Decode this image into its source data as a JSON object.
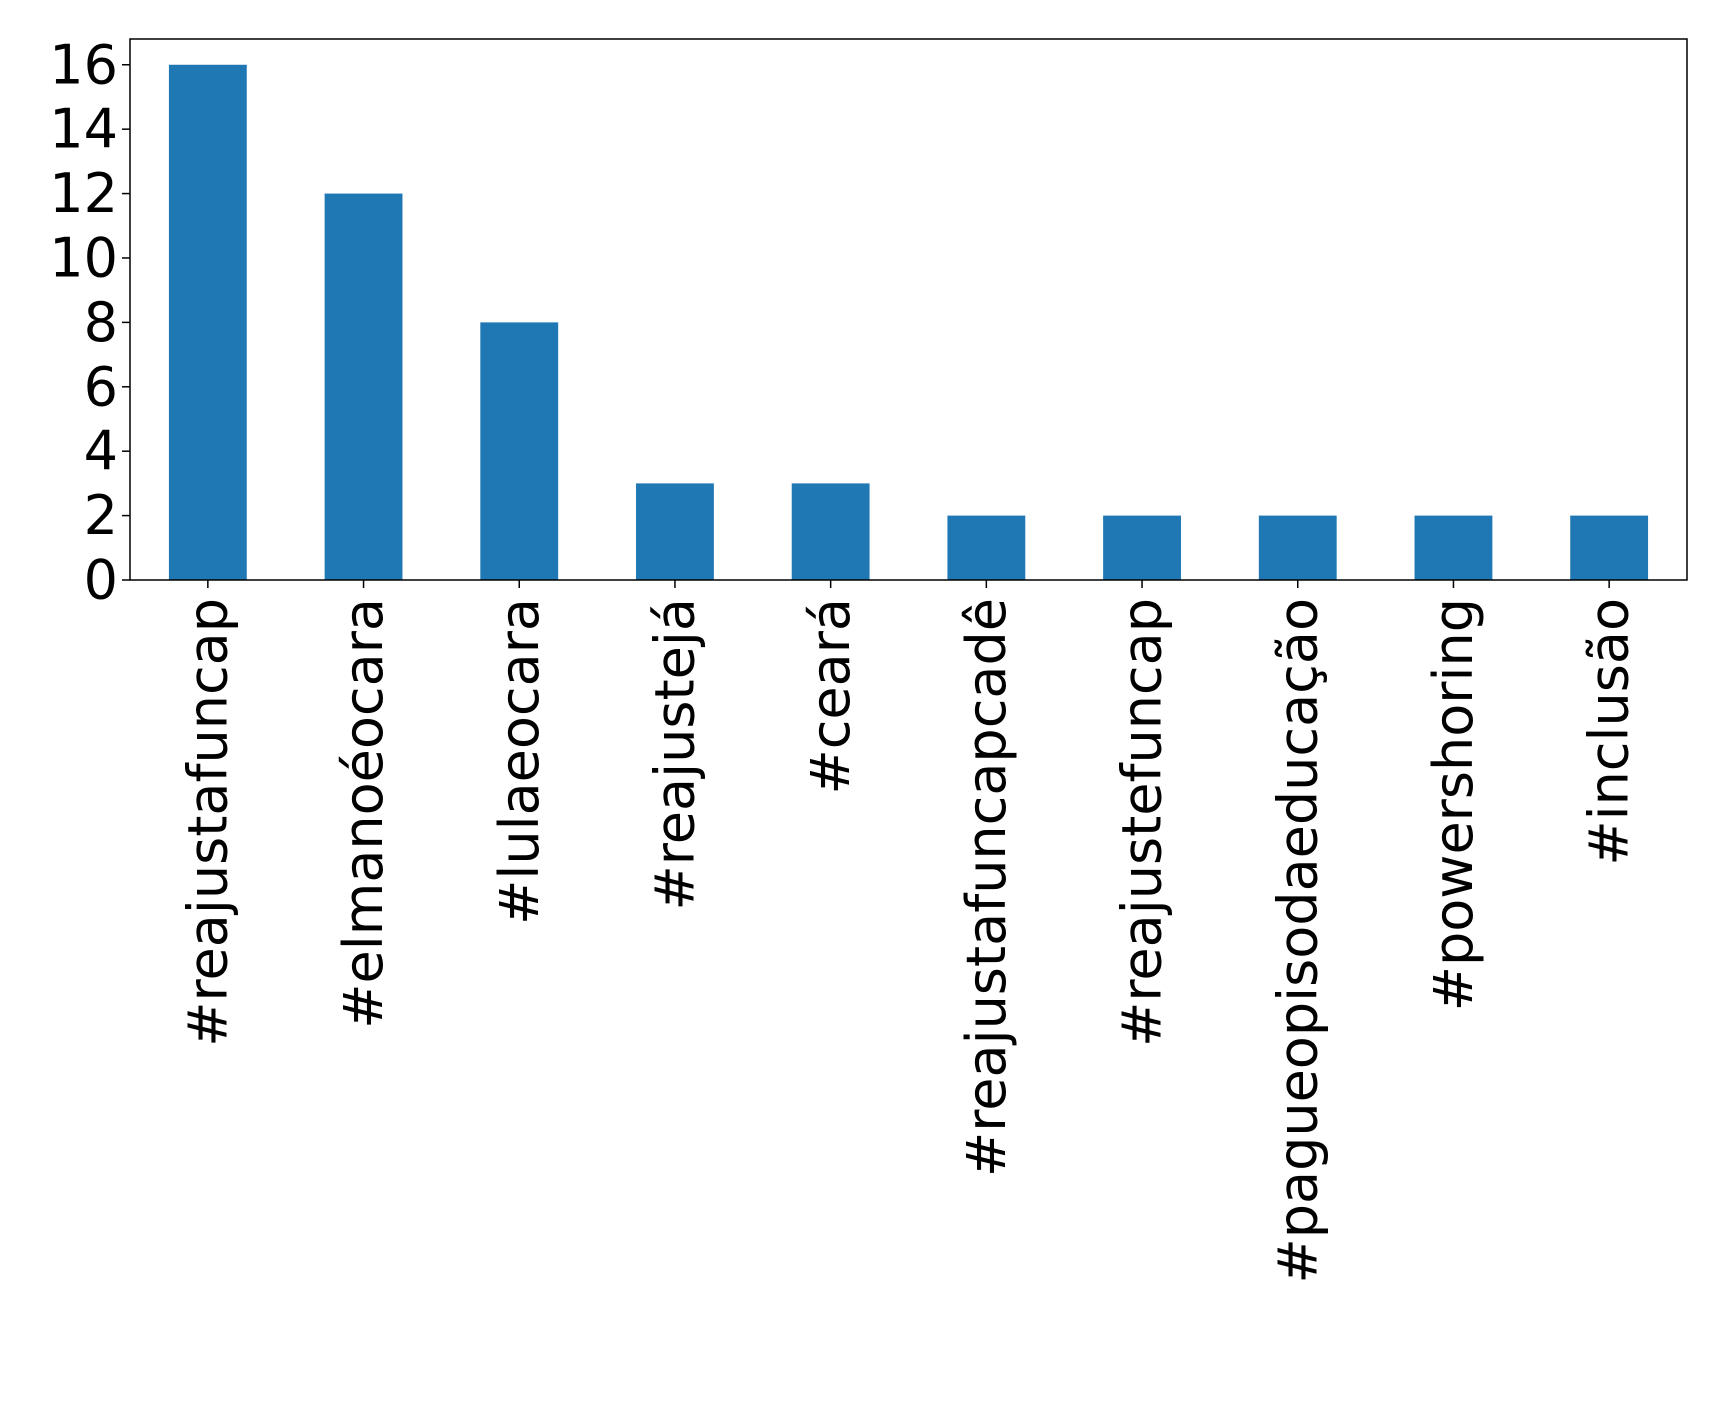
{
  "chart_data": {
    "type": "bar",
    "title": "",
    "xlabel": "",
    "ylabel": "",
    "categories": [
      "#reajustafuncap",
      "#elmanoéocara",
      "#lulaeocara",
      "#reajustejá",
      "#ceará",
      "#reajustafuncapcadê",
      "#reajustefuncap",
      "#pagueopisodaeducação",
      "#powershoring",
      "#inclusão"
    ],
    "values": [
      16,
      12,
      8,
      3,
      3,
      2,
      2,
      2,
      2,
      2
    ],
    "ylim": [
      0,
      16.8
    ],
    "yticks": [
      0,
      2,
      4,
      6,
      8,
      10,
      12,
      14,
      16
    ],
    "bar_color": "#1f77b4",
    "grid": false,
    "legend": "none"
  }
}
